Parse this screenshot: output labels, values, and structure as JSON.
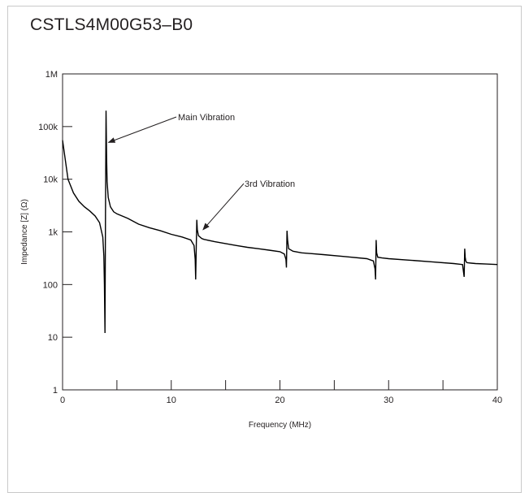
{
  "chart_data": {
    "type": "line",
    "title": "CSTLS4M00G53–B0",
    "xlabel": "Frequency (MHz)",
    "ylabel": "Impedance [Z] (Ω)",
    "xlim": [
      0,
      40
    ],
    "ylim": [
      1,
      1000000
    ],
    "y_scale": "log",
    "x_ticks": [
      0,
      10,
      20,
      30,
      40
    ],
    "x_minor_ticks": [
      5,
      15,
      25,
      35
    ],
    "y_ticks": [
      1,
      10,
      100,
      1000,
      10000,
      100000,
      1000000
    ],
    "y_tick_labels": [
      "1",
      "10",
      "100",
      "1k",
      "10k",
      "100k",
      "1M"
    ],
    "grid": false,
    "series": [
      {
        "x": [
          0,
          0.5,
          1,
          1.5,
          2,
          2.5,
          3,
          3.4,
          3.7,
          3.8,
          3.85,
          3.9,
          3.95,
          4.0,
          4.05,
          4.1,
          4.2,
          4.4,
          4.7,
          5,
          6,
          7,
          8,
          9,
          10,
          11,
          11.8,
          12.1,
          12.2,
          12.25,
          12.3,
          12.35,
          12.4,
          12.5,
          12.8,
          13,
          14,
          15,
          16,
          17,
          18,
          19,
          20,
          20.4,
          20.55,
          20.6,
          20.65,
          20.7,
          20.8,
          21.2,
          22,
          24,
          26,
          28,
          28.6,
          28.75,
          28.8,
          28.85,
          28.9,
          29.0,
          29.4,
          30,
          32,
          34,
          36,
          36.8,
          36.95,
          37.0,
          37.05,
          37.1,
          37.2,
          37.6,
          38,
          39,
          40
        ],
        "values": [
          55000,
          10000,
          5500,
          3800,
          3000,
          2500,
          2000,
          1500,
          800,
          350,
          100,
          12,
          2000,
          200000,
          25000,
          9000,
          4500,
          3000,
          2400,
          2200,
          1800,
          1400,
          1200,
          1050,
          900,
          800,
          700,
          550,
          300,
          125,
          500,
          1700,
          1100,
          850,
          750,
          720,
          650,
          600,
          550,
          510,
          480,
          450,
          420,
          380,
          300,
          210,
          1050,
          700,
          480,
          430,
          400,
          370,
          340,
          310,
          280,
          200,
          125,
          700,
          400,
          330,
          320,
          310,
          290,
          270,
          250,
          240,
          140,
          480,
          330,
          280,
          260,
          255,
          250,
          245,
          240
        ]
      }
    ],
    "annotations": [
      {
        "text": "Main Vibration",
        "x": 4.0,
        "y": 50000
      },
      {
        "text": "3rd Vibration",
        "x": 12.7,
        "y": 1100
      }
    ]
  }
}
